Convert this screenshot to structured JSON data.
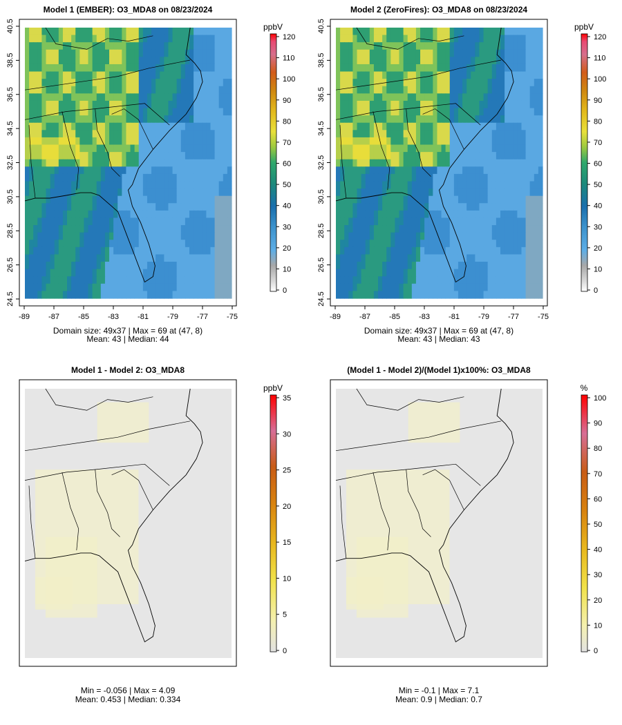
{
  "chart_data": [
    {
      "type": "heatmap",
      "title": "Model 1 (EMBER): O3_MDA8 on 08/23/2024",
      "xticks": [
        "-89",
        "-87",
        "-85",
        "-83",
        "-81",
        "-79",
        "-77",
        "-75"
      ],
      "yticks": [
        "24.5",
        "26.5",
        "28.5",
        "30.5",
        "32.5",
        "34.5",
        "36.5",
        "38.5",
        "40.5"
      ],
      "xlim": [
        -89,
        -75
      ],
      "ylim": [
        24.5,
        40.5
      ],
      "colorbar": {
        "unit": "ppbV",
        "ticks": [
          "0",
          "10",
          "20",
          "30",
          "40",
          "50",
          "60",
          "70",
          "80",
          "90",
          "100",
          "110",
          "120"
        ],
        "range": [
          0,
          120
        ]
      },
      "stats": {
        "line1": "Domain size: 49x37 | Max = 69 at (47, 8)",
        "line2": "Mean: 43 |  Median: 44"
      },
      "summary": {
        "domain_cols": 49,
        "domain_rows": 37,
        "max": 69,
        "mean": 43,
        "median": 44
      }
    },
    {
      "type": "heatmap",
      "title": "Model 2 (ZeroFires): O3_MDA8 on 08/23/2024",
      "xticks": [
        "-89",
        "-87",
        "-85",
        "-83",
        "-81",
        "-79",
        "-77",
        "-75"
      ],
      "yticks": [
        "24.5",
        "26.5",
        "28.5",
        "30.5",
        "32.5",
        "34.5",
        "36.5",
        "38.5",
        "40.5"
      ],
      "xlim": [
        -89,
        -75
      ],
      "ylim": [
        24.5,
        40.5
      ],
      "colorbar": {
        "unit": "ppbV",
        "ticks": [
          "0",
          "10",
          "20",
          "30",
          "40",
          "50",
          "60",
          "70",
          "80",
          "90",
          "100",
          "110",
          "120"
        ],
        "range": [
          0,
          120
        ]
      },
      "stats": {
        "line1": "Domain size: 49x37 | Max = 69 at (47, 8)",
        "line2": "Mean: 43 |  Median: 43"
      },
      "summary": {
        "domain_cols": 49,
        "domain_rows": 37,
        "max": 69,
        "mean": 43,
        "median": 43
      }
    },
    {
      "type": "heatmap",
      "title": "Model 1 - Model 2: O3_MDA8",
      "colorbar": {
        "unit": "ppbV",
        "ticks": [
          "0",
          "5",
          "10",
          "15",
          "20",
          "25",
          "30",
          "35"
        ],
        "range": [
          0,
          35
        ]
      },
      "stats": {
        "line1": "Min = -0.056 | Max = 4.09",
        "line2": "Mean: 0.453 |  Median: 0.334"
      },
      "summary": {
        "min": -0.056,
        "max": 4.09,
        "mean": 0.453,
        "median": 0.334
      }
    },
    {
      "type": "heatmap",
      "title": "(Model 1 - Model 2)/(Model 1)x100%: O3_MDA8",
      "colorbar": {
        "unit": "%",
        "ticks": [
          "0",
          "10",
          "20",
          "30",
          "40",
          "50",
          "60",
          "70",
          "80",
          "90",
          "100"
        ],
        "range": [
          0,
          100
        ]
      },
      "stats": {
        "line1": "Min = -0.1 | Max = 7.1",
        "line2": "Mean: 0.9 |  Median: 0.7"
      },
      "summary": {
        "min": -0.1,
        "max": 7.1,
        "mean": 0.9,
        "median": 0.7
      }
    }
  ]
}
